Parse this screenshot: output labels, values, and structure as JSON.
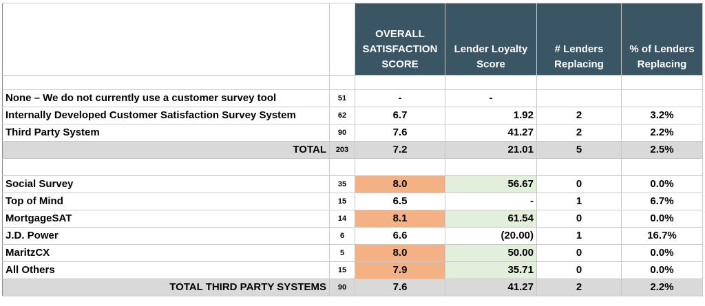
{
  "headers": {
    "overall": "OVERALL SATISFACTION SCORE",
    "loyalty": "Lender Loyalty Score",
    "lenders": "# Lenders Replacing",
    "pct": "% of Lenders Replacing"
  },
  "section1": [
    {
      "label": "None – We do not currently use a customer survey tool",
      "n": "51",
      "overall": "-",
      "loyalty": "-",
      "lenders": "",
      "pct": ""
    },
    {
      "label": "Internally Developed Customer Satisfaction Survey System",
      "n": "62",
      "overall": "6.7",
      "loyalty": "1.92",
      "lenders": "2",
      "pct": "3.2%"
    },
    {
      "label": "Third Party System",
      "n": "90",
      "overall": "7.6",
      "loyalty": "41.27",
      "lenders": "2",
      "pct": "2.2%"
    }
  ],
  "total1": {
    "label": "TOTAL",
    "n": "203",
    "overall": "7.2",
    "loyalty": "21.01",
    "lenders": "5",
    "pct": "2.5%"
  },
  "section2": [
    {
      "label": "Social Survey",
      "n": "35",
      "overall": "8.0",
      "loyalty": "56.67",
      "lenders": "0",
      "pct": "0.0%"
    },
    {
      "label": "Top of Mind",
      "n": "15",
      "overall": "6.5",
      "loyalty": "-",
      "lenders": "1",
      "pct": "6.7%"
    },
    {
      "label": "MortgageSAT",
      "n": "14",
      "overall": "8.1",
      "loyalty": "61.54",
      "lenders": "0",
      "pct": "0.0%"
    },
    {
      "label": "J.D. Power",
      "n": "6",
      "overall": "6.6",
      "loyalty": "(20.00)",
      "lenders": "1",
      "pct": "16.7%"
    },
    {
      "label": "MaritzCX",
      "n": "5",
      "overall": "8.0",
      "loyalty": "50.00",
      "lenders": "0",
      "pct": "0.0%"
    },
    {
      "label": "All Others",
      "n": "15",
      "overall": "7.9",
      "loyalty": "35.71",
      "lenders": "0",
      "pct": "0.0%"
    }
  ],
  "total2": {
    "label": "TOTAL THIRD PARTY SYSTEMS",
    "n": "90",
    "overall": "7.6",
    "loyalty": "41.27",
    "lenders": "2",
    "pct": "2.2%"
  },
  "colors": {
    "header": "#3a5563",
    "highlight_orange": "#f4b183",
    "highlight_green": "#e2efda",
    "total_row": "#d9d9d9"
  }
}
